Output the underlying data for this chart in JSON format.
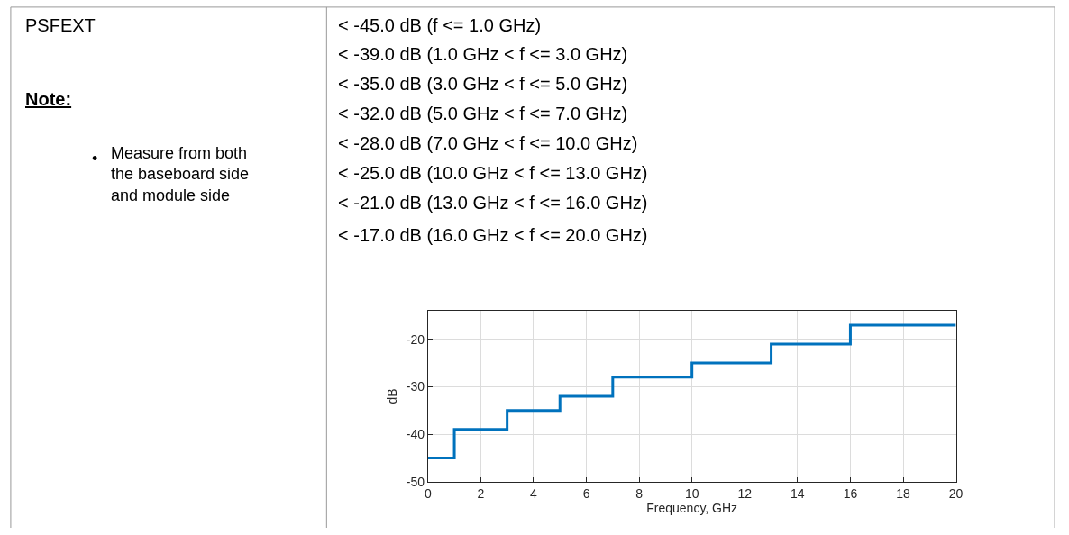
{
  "chart_data": {
    "type": "step",
    "xlabel": "Frequency, GHz",
    "ylabel": "dB",
    "x": [
      0,
      1,
      3,
      5,
      7,
      10,
      13,
      16,
      20
    ],
    "series": [
      {
        "color": "#0072bd",
        "values": [
          -45,
          -39,
          -35,
          -32,
          -28,
          -25,
          -21,
          -17,
          -17
        ]
      }
    ],
    "xlim": [
      0,
      20
    ],
    "xticks": [
      0,
      2,
      4,
      6,
      8,
      10,
      12,
      14,
      16,
      18,
      20
    ],
    "ylim": [
      -50,
      -14
    ],
    "yticks": [
      -50,
      -40,
      -30,
      -20
    ],
    "grid": true,
    "annotations": [
      "PSFEXT",
      "Note:",
      "•",
      "Measure from both\nthe baseboard side\nand module side",
      "< -45.0 dB (f <= 1.0 GHz)",
      "< -39.0 dB (1.0 GHz < f <= 3.0 GHz)",
      "< -35.0 dB (3.0 GHz < f <= 5.0 GHz)",
      "< -32.0 dB (5.0 GHz < f <= 7.0 GHz)",
      "< -28.0 dB (7.0 GHz < f <= 10.0 GHz)",
      "< -25.0 dB (10.0 GHz < f <= 13.0 GHz)",
      "< -21.0 dB (13.0 GHz < f <= 16.0 GHz)",
      "< -17.0 dB (16.0 GHz < f <= 20.0 GHz)"
    ]
  }
}
